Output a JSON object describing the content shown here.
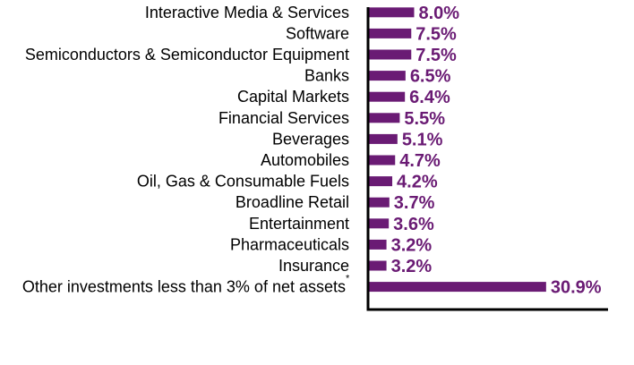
{
  "colors": {
    "bar": "#6a1b74",
    "value_text": "#6a1b74",
    "axis": "#000000"
  },
  "chart_data": {
    "type": "bar",
    "orientation": "horizontal",
    "title": "",
    "xlabel": "",
    "ylabel": "",
    "xlim": [
      0,
      43
    ],
    "grid": false,
    "legend": "none",
    "categories": [
      "Interactive Media & Services",
      "Software",
      "Semiconductors & Semiconductor Equipment",
      "Banks",
      "Capital Markets",
      "Financial Services",
      "Beverages",
      "Automobiles",
      "Oil, Gas & Consumable Fuels",
      "Broadline Retail",
      "Entertainment",
      "Pharmaceuticals",
      "Insurance",
      "Other investments less than 3% of net assets"
    ],
    "category_marks": [
      "",
      "",
      "",
      "",
      "",
      "",
      "",
      "",
      "",
      "",
      "",
      "",
      "",
      "*"
    ],
    "values": [
      8.0,
      7.5,
      7.5,
      6.5,
      6.4,
      5.5,
      5.1,
      4.7,
      4.2,
      3.7,
      3.6,
      3.2,
      3.2,
      30.9
    ],
    "value_labels": [
      "8.0%",
      "7.5%",
      "7.5%",
      "6.5%",
      "6.4%",
      "5.5%",
      "5.1%",
      "4.7%",
      "4.2%",
      "3.7%",
      "3.6%",
      "3.2%",
      "3.2%",
      "30.9%"
    ]
  }
}
